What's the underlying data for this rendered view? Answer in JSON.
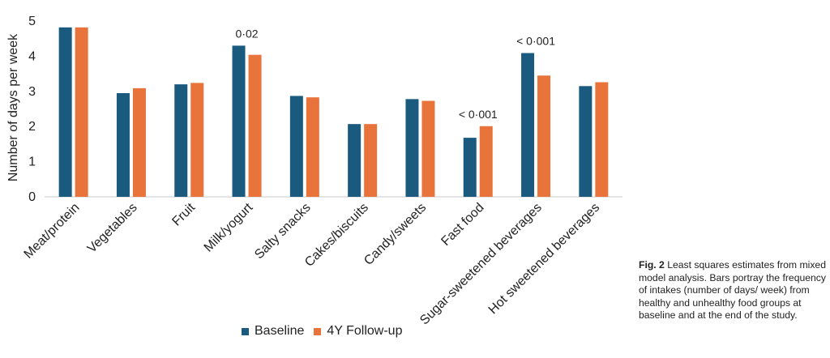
{
  "chart_data": {
    "type": "bar",
    "ylabel": "Number of days per week",
    "xlabel": "",
    "ylim": [
      0,
      5
    ],
    "yticks": [
      0,
      1,
      2,
      3,
      4,
      5
    ],
    "grid": false,
    "legend_position": "bottom",
    "categories": [
      "Meat/protein",
      "Vegetables",
      "Fruit",
      "Milk/yogurt",
      "Salty snacks",
      "Cakes/biscuits",
      "Candy/sweets",
      "Fast food",
      "Sugar-sweetened beverages",
      "Hot sweetened beverages"
    ],
    "series": [
      {
        "name": "Baseline",
        "color": "#1a5a7e",
        "values": [
          4.82,
          2.95,
          3.2,
          4.3,
          2.87,
          2.07,
          2.78,
          1.68,
          4.09,
          3.15
        ]
      },
      {
        "name": "4Y Follow-up",
        "color": "#e8743b",
        "values": [
          4.82,
          3.09,
          3.24,
          4.04,
          2.83,
          2.07,
          2.73,
          2.01,
          3.45,
          3.26
        ]
      }
    ],
    "annotations": [
      {
        "category": "Milk/yogurt",
        "text": "0·02"
      },
      {
        "category": "Fast food",
        "text": "< 0·001"
      },
      {
        "category": "Sugar-sweetened beverages",
        "text": "< 0·001"
      }
    ]
  },
  "caption": {
    "label": "Fig. 2",
    "text": " Least squares estimates from mixed model analysis. Bars portray the frequency of intakes (number of days/ week) from healthy and unhealthy food groups at baseline and at the end of the study."
  }
}
